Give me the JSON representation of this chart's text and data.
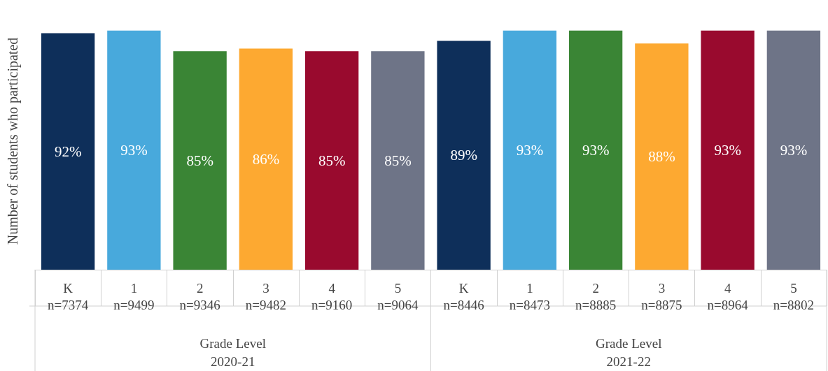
{
  "chart_data": {
    "type": "bar",
    "ylabel": "Number of students who participated",
    "categories": [
      "K\nn=7374",
      "1\nn=9499",
      "2\nn=9346",
      "3\nn=9482",
      "4\nn=9160",
      "5\nn=9064",
      "K\nn=8446",
      "1\nn=8473",
      "2\nn=8885",
      "3\nn=8875",
      "4\nn=8964",
      "5\nn=8802"
    ],
    "values": [
      92,
      93,
      85,
      86,
      85,
      85,
      89,
      93,
      93,
      88,
      93,
      93
    ],
    "colors": [
      "#0e2f5a",
      "#48a9dc",
      "#3a8535",
      "#fda931",
      "#990a2e",
      "#6e7487",
      "#0e2f5a",
      "#48a9dc",
      "#3a8535",
      "#fda931",
      "#990a2e",
      "#6e7487"
    ],
    "value_labels": [
      "92%",
      "93%",
      "85%",
      "86%",
      "85%",
      "85%",
      "89%",
      "93%",
      "93%",
      "88%",
      "93%",
      "93%"
    ],
    "annotations": [
      "Grade Level\n2020-21",
      "Grade Level\n2021-22"
    ]
  }
}
